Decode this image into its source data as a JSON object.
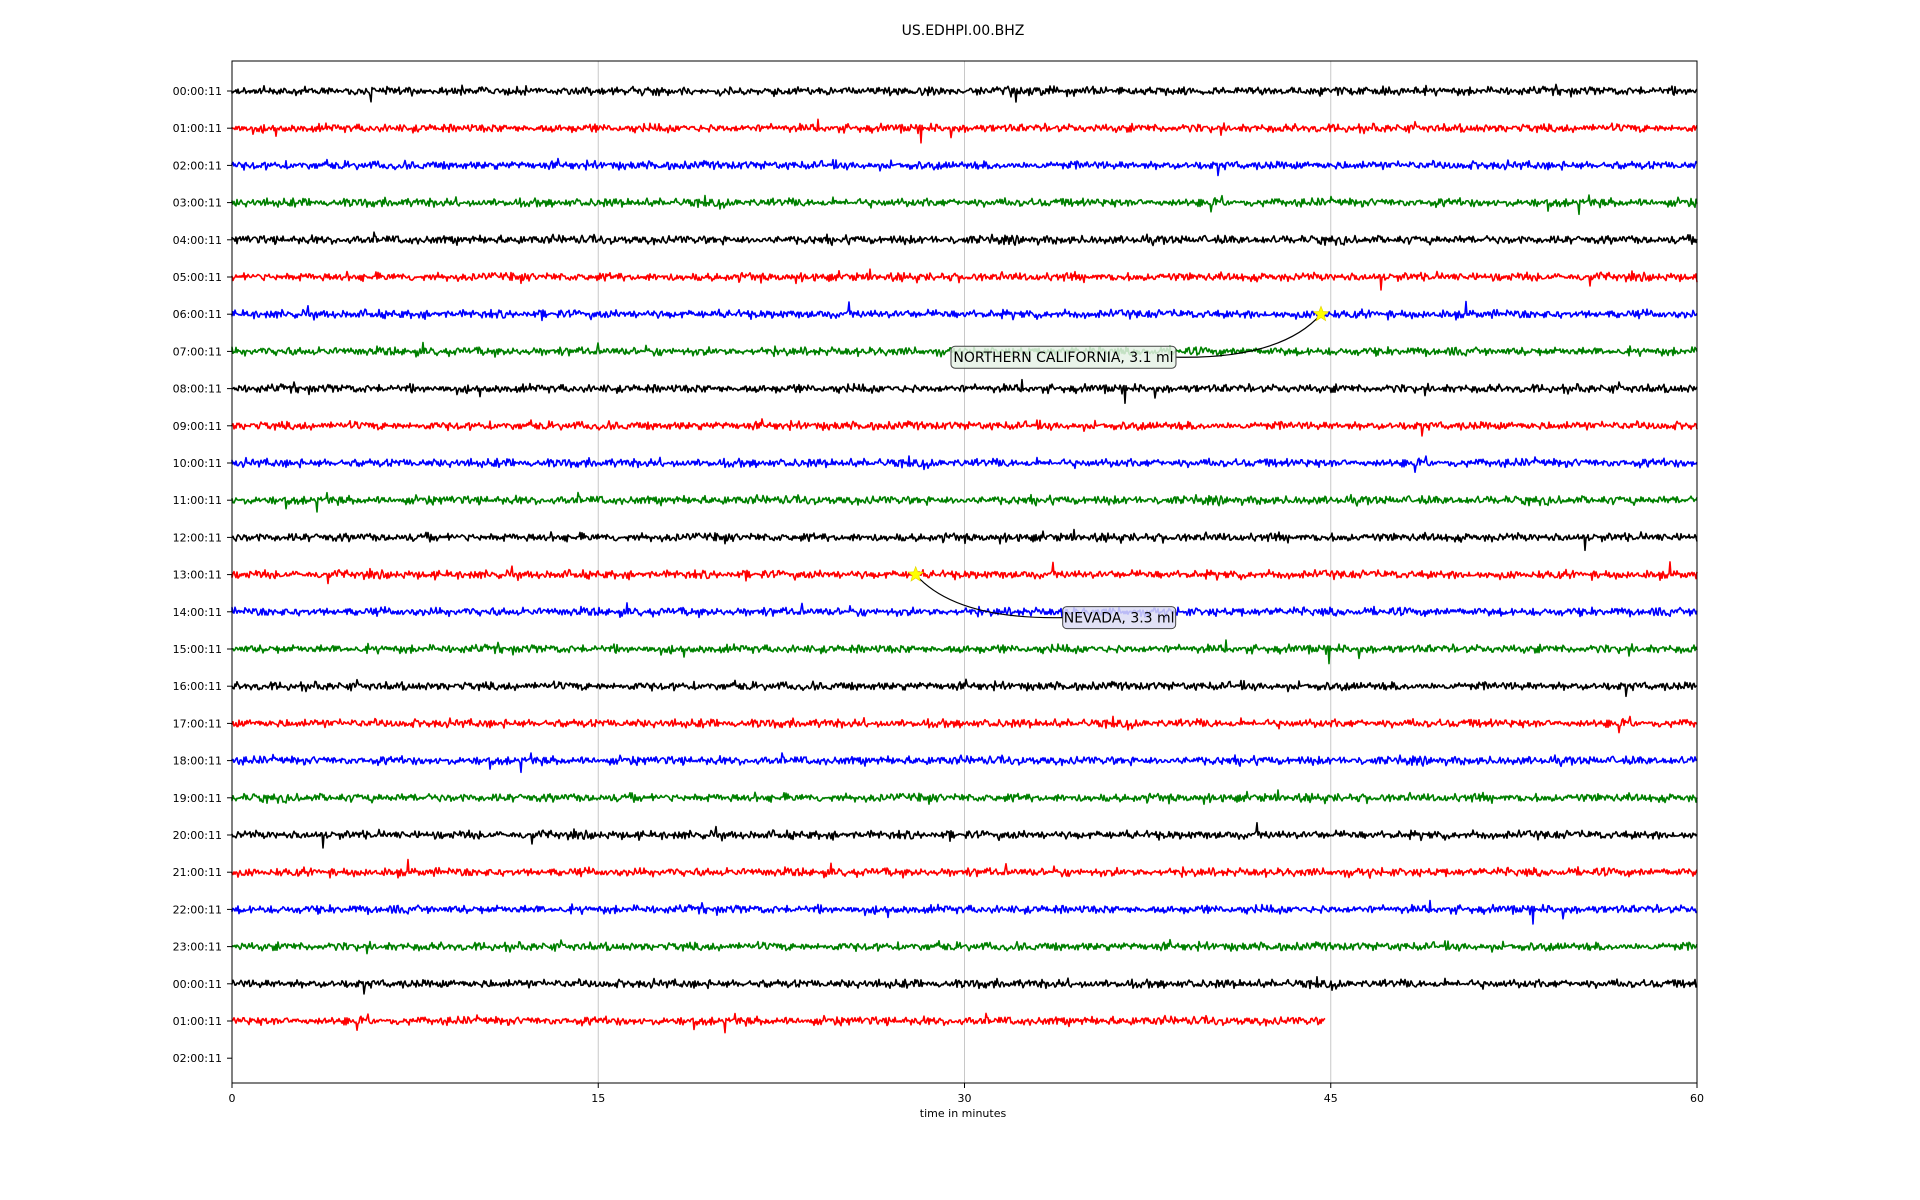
{
  "chart_data": {
    "type": "line",
    "title": "US.EDHPI.00.BHZ",
    "xlabel": "time in minutes",
    "ylabel": "",
    "xlim": [
      0,
      60
    ],
    "xticks": [
      0,
      15,
      30,
      45,
      60
    ],
    "grid": "vertical",
    "trace_colors": [
      "#000000",
      "#ff0000",
      "#0000ff",
      "#008000"
    ],
    "rows": [
      {
        "label": "00:00:11",
        "color": "#000000",
        "end": 60
      },
      {
        "label": "01:00:11",
        "color": "#ff0000",
        "end": 60
      },
      {
        "label": "02:00:11",
        "color": "#0000ff",
        "end": 60
      },
      {
        "label": "03:00:11",
        "color": "#008000",
        "end": 60
      },
      {
        "label": "04:00:11",
        "color": "#000000",
        "end": 60
      },
      {
        "label": "05:00:11",
        "color": "#ff0000",
        "end": 60
      },
      {
        "label": "06:00:11",
        "color": "#0000ff",
        "end": 60
      },
      {
        "label": "07:00:11",
        "color": "#008000",
        "end": 60
      },
      {
        "label": "08:00:11",
        "color": "#000000",
        "end": 60
      },
      {
        "label": "09:00:11",
        "color": "#ff0000",
        "end": 60
      },
      {
        "label": "10:00:11",
        "color": "#0000ff",
        "end": 60
      },
      {
        "label": "11:00:11",
        "color": "#008000",
        "end": 60
      },
      {
        "label": "12:00:11",
        "color": "#000000",
        "end": 60
      },
      {
        "label": "13:00:11",
        "color": "#ff0000",
        "end": 60
      },
      {
        "label": "14:00:11",
        "color": "#0000ff",
        "end": 60
      },
      {
        "label": "15:00:11",
        "color": "#008000",
        "end": 60
      },
      {
        "label": "16:00:11",
        "color": "#000000",
        "end": 60
      },
      {
        "label": "17:00:11",
        "color": "#ff0000",
        "end": 60
      },
      {
        "label": "18:00:11",
        "color": "#0000ff",
        "end": 60
      },
      {
        "label": "19:00:11",
        "color": "#008000",
        "end": 60
      },
      {
        "label": "20:00:11",
        "color": "#000000",
        "end": 60
      },
      {
        "label": "21:00:11",
        "color": "#ff0000",
        "end": 60
      },
      {
        "label": "22:00:11",
        "color": "#0000ff",
        "end": 60
      },
      {
        "label": "23:00:11",
        "color": "#008000",
        "end": 60
      },
      {
        "label": "00:00:11",
        "color": "#000000",
        "end": 60
      },
      {
        "label": "01:00:11",
        "color": "#ff0000",
        "end": 44.8
      },
      {
        "label": "02:00:11",
        "color": "#0000ff",
        "end": 0
      }
    ],
    "events": [
      {
        "label": "NORTHERN CALIFORNIA, 3.1 ml",
        "row": 6,
        "minute": 44.6,
        "marker": "star",
        "marker_color": "#ffff00"
      },
      {
        "label": "NEVADA, 3.3 ml",
        "row": 13,
        "minute": 28.0,
        "marker": "star",
        "marker_color": "#ffff00"
      }
    ]
  }
}
